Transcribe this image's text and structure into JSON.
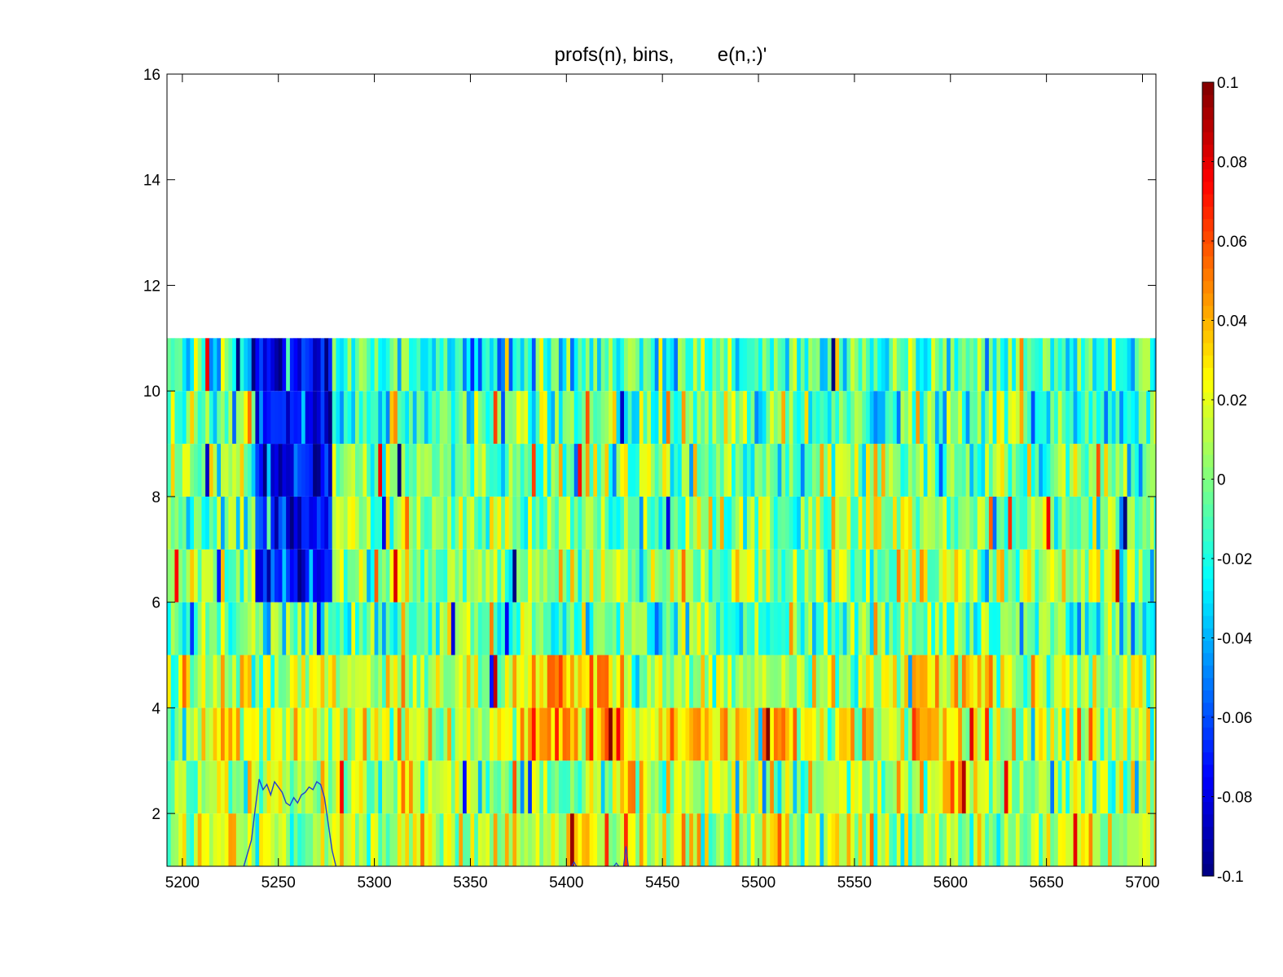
{
  "chart_data": {
    "type": "heatmap",
    "title": "profs(n), bins,        e(n,:)'",
    "xlabel": "",
    "ylabel": "",
    "xlim": [
      5192,
      5707
    ],
    "ylim": [
      1,
      16
    ],
    "x_ticks": [
      5200,
      5250,
      5300,
      5350,
      5400,
      5450,
      5500,
      5550,
      5600,
      5650,
      5700
    ],
    "y_ticks": [
      2,
      4,
      6,
      8,
      10,
      12,
      14,
      16
    ],
    "grid": false,
    "colormap": "jet",
    "colorbar": {
      "range": [
        -0.1,
        0.1
      ],
      "ticks": [
        "0.1",
        "0.08",
        "0.06",
        "0.04",
        "0.02",
        "0",
        "-0.02",
        "-0.04",
        "-0.06",
        "-0.08",
        "-0.1"
      ],
      "tick_values": [
        0.1,
        0.08,
        0.06,
        0.04,
        0.02,
        0,
        -0.02,
        -0.04,
        -0.06,
        -0.08,
        -0.1
      ]
    },
    "bins": [
      {
        "y0": 1,
        "y1": 2,
        "mean": 0.012
      },
      {
        "y0": 2,
        "y1": 3,
        "mean": 0.008
      },
      {
        "y0": 3,
        "y1": 4,
        "mean": 0.016
      },
      {
        "y0": 4,
        "y1": 5,
        "mean": 0.008
      },
      {
        "y0": 5,
        "y1": 6,
        "mean": -0.006
      },
      {
        "y0": 6,
        "y1": 7,
        "mean": 0.004
      },
      {
        "y0": 7,
        "y1": 8,
        "mean": 0.0
      },
      {
        "y0": 8,
        "y1": 9,
        "mean": -0.004
      },
      {
        "y0": 9,
        "y1": 10,
        "mean": -0.006
      },
      {
        "y0": 10,
        "y1": 11,
        "mean": -0.016
      }
    ],
    "features": [
      {
        "x0": 5238,
        "x1": 5278,
        "y0": 6,
        "y1": 11,
        "value": -0.07
      },
      {
        "x0": 5242,
        "x1": 5262,
        "y0": 8,
        "y1": 9,
        "value": -0.085
      },
      {
        "x0": 5375,
        "x1": 5430,
        "y0": 3,
        "y1": 5,
        "value": 0.04
      },
      {
        "x0": 5455,
        "x1": 5480,
        "y0": 3,
        "y1": 4,
        "value": 0.065
      },
      {
        "x0": 5440,
        "x1": 5520,
        "y0": 3,
        "y1": 4,
        "value": 0.035
      },
      {
        "x0": 5580,
        "x1": 5620,
        "y0": 2,
        "y1": 5,
        "value": 0.03
      }
    ],
    "line_series": {
      "name": "",
      "color": "#1f3fd4",
      "x": [
        5232,
        5236,
        5238,
        5240,
        5242,
        5244,
        5246,
        5248,
        5250,
        5252,
        5254,
        5256,
        5258,
        5260,
        5262,
        5264,
        5266,
        5268,
        5270,
        5272,
        5274,
        5276,
        5278,
        5280
      ],
      "y": [
        1.0,
        1.5,
        2.1,
        2.65,
        2.45,
        2.55,
        2.35,
        2.6,
        2.5,
        2.4,
        2.2,
        2.15,
        2.3,
        2.2,
        2.35,
        2.4,
        2.5,
        2.45,
        2.6,
        2.55,
        2.3,
        1.8,
        1.3,
        1.0
      ]
    },
    "small_peaks": [
      {
        "x": 5404,
        "y": 1.08
      },
      {
        "x": 5431,
        "y": 1.38
      },
      {
        "x": 5426,
        "y": 1.06
      }
    ]
  }
}
